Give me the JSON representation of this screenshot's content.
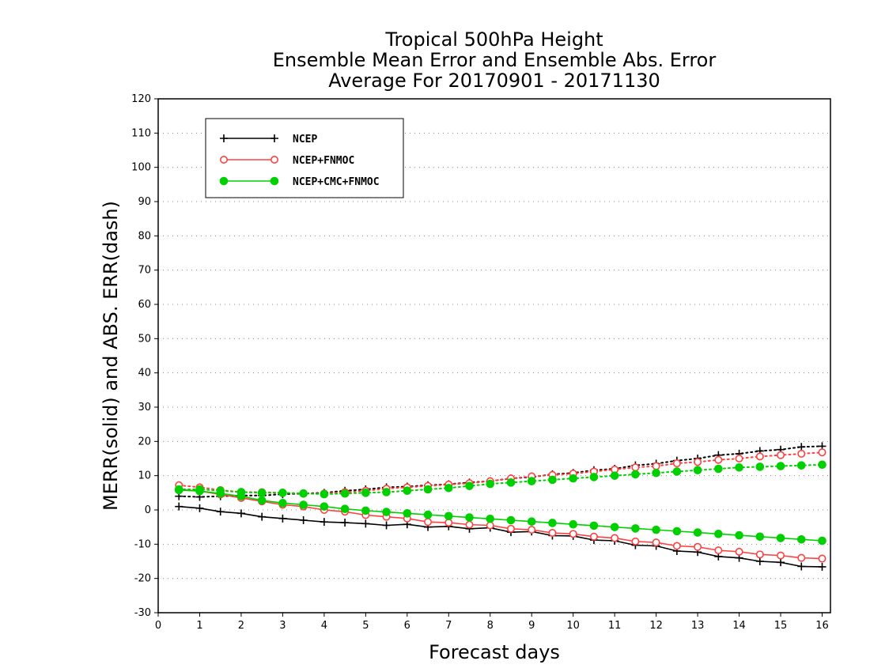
{
  "chart_data": {
    "type": "line",
    "title": [
      "Tropical 500hPa Height",
      "Ensemble Mean Error and Ensemble Abs. Error",
      "Average For 20170901 - 20171130"
    ],
    "xlabel": "Forecast days",
    "ylabel": "MERR(solid) and ABS. ERR(dash)",
    "xlim": [
      0,
      16.2
    ],
    "ylim": [
      -30,
      120
    ],
    "xticks": [
      0,
      1,
      2,
      3,
      4,
      5,
      6,
      7,
      8,
      9,
      10,
      11,
      12,
      13,
      14,
      15,
      16
    ],
    "yticks": [
      -30,
      -20,
      -10,
      0,
      10,
      20,
      30,
      40,
      50,
      60,
      70,
      80,
      90,
      100,
      110,
      120
    ],
    "grid": "horizontal dotted",
    "legend_position": "top-left",
    "x": [
      0.5,
      1,
      1.5,
      2,
      2.5,
      3,
      3.5,
      4,
      4.5,
      5,
      5.5,
      6,
      6.5,
      7,
      7.5,
      8,
      8.5,
      9,
      9.5,
      10,
      10.5,
      11,
      11.5,
      12,
      12.5,
      13,
      13.5,
      14,
      14.5,
      15,
      15.5,
      16
    ],
    "series": [
      {
        "name": "NCEP",
        "color": "#000000",
        "marker": "plus",
        "merr": [
          1,
          0.5,
          -0.5,
          -1,
          -2,
          -2.5,
          -3,
          -3.5,
          -3.7,
          -4,
          -4.5,
          -4.2,
          -5,
          -4.8,
          -5.5,
          -5.2,
          -6.5,
          -6.3,
          -7.5,
          -7.6,
          -8.8,
          -9,
          -10.3,
          -10.5,
          -12,
          -12.3,
          -13.6,
          -14,
          -15,
          -15.3,
          -16.5,
          -16.6
        ],
        "abserr": [
          4,
          3.8,
          4,
          4.2,
          4.2,
          4.6,
          4.8,
          5,
          5.6,
          6,
          6.6,
          6.8,
          7.2,
          7.5,
          8,
          8.4,
          9.2,
          9.6,
          10.4,
          10.8,
          11.6,
          12,
          13,
          13.5,
          14.4,
          15,
          16,
          16.4,
          17.2,
          17.6,
          18.4,
          18.6
        ]
      },
      {
        "name": "NCEP+FNMOC",
        "color": "#ff4040",
        "marker": "open-circle",
        "merr": [
          6,
          5.5,
          4.5,
          3.5,
          2.5,
          1.5,
          1,
          0,
          -0.5,
          -1.5,
          -2,
          -2.5,
          -3.5,
          -3.7,
          -4.3,
          -4.5,
          -5.5,
          -5.8,
          -6.7,
          -7,
          -7.8,
          -8.2,
          -9.2,
          -9.5,
          -10.5,
          -10.8,
          -11.8,
          -12.2,
          -13,
          -13.3,
          -14,
          -14.2
        ],
        "abserr": [
          7.2,
          6.6,
          5.8,
          5.2,
          5.2,
          5,
          4.8,
          4.8,
          5.2,
          5.6,
          6.2,
          6.6,
          7,
          7.4,
          7.8,
          8.4,
          9.2,
          9.8,
          10.2,
          10.6,
          11.2,
          11.8,
          12.4,
          12.8,
          13.6,
          14,
          14.6,
          15,
          15.6,
          16,
          16.4,
          16.8
        ]
      },
      {
        "name": "NCEP+CMC+FNMOC",
        "color": "#00d000",
        "marker": "filled-circle",
        "merr": [
          5.8,
          5.5,
          4.8,
          4,
          2.8,
          2,
          1.5,
          1,
          0.3,
          -0.2,
          -0.6,
          -1,
          -1.4,
          -1.8,
          -2.2,
          -2.6,
          -3,
          -3.4,
          -3.8,
          -4.2,
          -4.6,
          -5,
          -5.4,
          -5.8,
          -6.2,
          -6.6,
          -7,
          -7.4,
          -7.8,
          -8.2,
          -8.6,
          -9
        ],
        "abserr": [
          6,
          6,
          5.6,
          5.2,
          5,
          5,
          4.8,
          4.6,
          4.8,
          5,
          5.2,
          5.6,
          6,
          6.4,
          7,
          7.6,
          8,
          8.4,
          8.8,
          9.2,
          9.6,
          10,
          10.4,
          10.8,
          11.2,
          11.6,
          12,
          12.4,
          12.6,
          12.8,
          13,
          13.2
        ]
      }
    ]
  }
}
